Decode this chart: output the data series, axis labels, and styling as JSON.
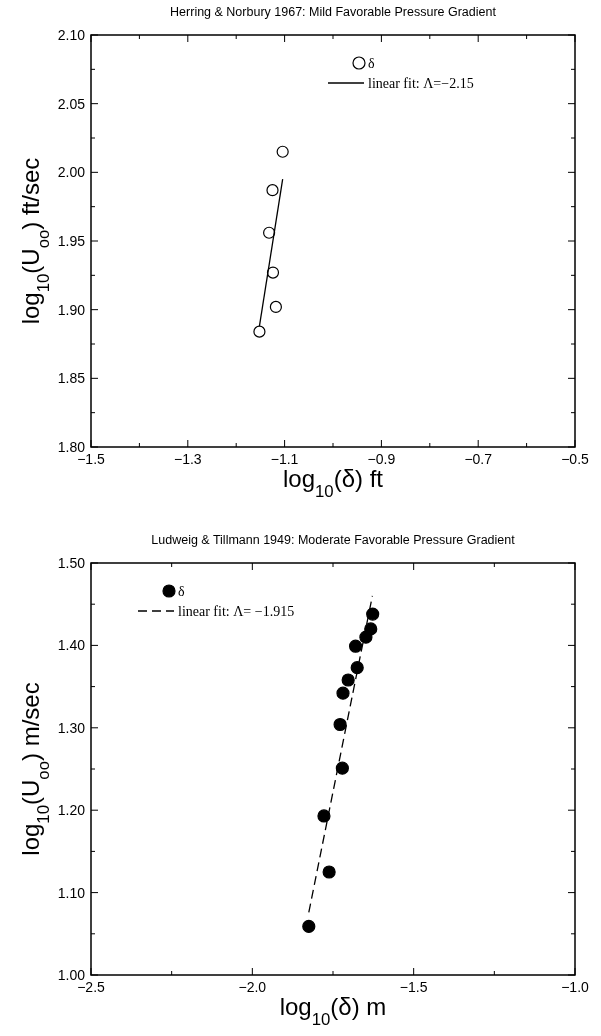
{
  "chart_data": [
    {
      "type": "scatter",
      "title": "Herring & Norbury 1967: Mild Favorable Pressure Gradient",
      "xlabel": "log$_{10}$(δ) ft",
      "ylabel": "log$_{10}$(U$_{oo}$) ft/sec",
      "xlim": [
        -1.5,
        -0.5
      ],
      "xticks": [
        {
          "value": -1.5,
          "label": "−1.5"
        },
        {
          "value": -1.3,
          "label": "−1.3"
        },
        {
          "value": -1.1,
          "label": "−1.1"
        },
        {
          "value": -0.9,
          "label": "−0.9"
        },
        {
          "value": -0.7,
          "label": "−0.7"
        },
        {
          "value": -0.5,
          "label": "−0.5"
        }
      ],
      "ylim": [
        1.8,
        2.1
      ],
      "yticks": [
        {
          "value": 1.8,
          "label": "1.80"
        },
        1.85,
        {
          "value": 1.9,
          "label": "1.90"
        },
        1.95,
        {
          "value": 2.0,
          "label": "2.00"
        },
        2.05,
        {
          "value": 2.1,
          "label": "2.10"
        }
      ],
      "legend": "top right",
      "series": [
        {
          "name": "δ",
          "marker": "circle",
          "color": "#000000",
          "x": [
            -1.104,
            -1.125,
            -1.132,
            -1.124,
            -1.118,
            -1.152
          ],
          "values": [
            2.015,
            1.987,
            1.956,
            1.927,
            1.902,
            1.884
          ]
        },
        {
          "name": "linear fit: Λ=−2.15",
          "type": "line",
          "line_style": "solid",
          "color": "#000000",
          "x": [
            -1.152,
            -1.104
          ],
          "values": [
            1.888,
            1.995
          ]
        }
      ]
    },
    {
      "type": "scatter",
      "title": "Ludweig & Tillmann 1949: Moderate Favorable Pressure Gradient",
      "xlabel": "log$_{10}$(δ) m",
      "ylabel": "log$_{10}$(U$_{oo}$) m/sec",
      "xlim": [
        -2.5,
        -1.0
      ],
      "xticks": [
        {
          "value": -2.5,
          "label": "−2.5"
        },
        {
          "value": -2.0,
          "label": "−2.0"
        },
        {
          "value": -1.5,
          "label": "−1.5"
        },
        {
          "value": -1.0,
          "label": "−1.0"
        }
      ],
      "ylim": [
        1.0,
        1.5
      ],
      "yticks": [
        {
          "value": 1.0,
          "label": "1.00"
        },
        {
          "value": 1.1,
          "label": "1.10"
        },
        {
          "value": 1.2,
          "label": "1.20"
        },
        {
          "value": 1.3,
          "label": "1.30"
        },
        {
          "value": 1.4,
          "label": "1.40"
        },
        {
          "value": 1.5,
          "label": "1.50"
        }
      ],
      "legend": "top left",
      "series": [
        {
          "name": "δ",
          "marker": "circle",
          "color": "#000000",
          "x": [
            -1.627,
            -1.633,
            -1.648,
            -1.68,
            -1.675,
            -1.703,
            -1.719,
            -1.728,
            -1.721,
            -1.778,
            -1.762,
            -1.825
          ],
          "values": [
            1.438,
            1.42,
            1.41,
            1.399,
            1.373,
            1.358,
            1.342,
            1.304,
            1.251,
            1.193,
            1.125,
            1.059
          ]
        },
        {
          "name": "linear fit: Λ= −1.915",
          "type": "line",
          "line_style": "dashed",
          "color": "#000000",
          "x": [
            -1.825,
            -1.628
          ],
          "values": [
            1.076,
            1.46
          ]
        }
      ]
    }
  ]
}
